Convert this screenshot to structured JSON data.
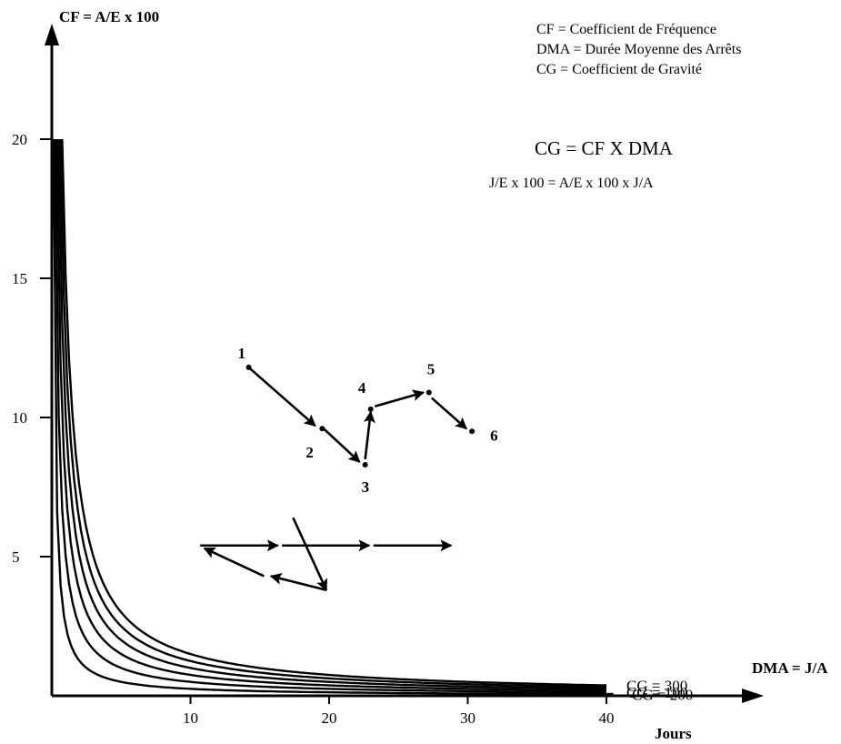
{
  "chart_data": {
    "type": "line",
    "title": "",
    "ylabel": "CF = A/E x 100",
    "xlabel": "DMA = J/A",
    "x_unit": "Jours",
    "xlim": [
      0,
      48
    ],
    "ylim": [
      0,
      24
    ],
    "x_ticks": [
      10,
      20,
      30,
      40
    ],
    "x_tick_labels": [
      "10",
      "20",
      "30",
      "40"
    ],
    "y_ticks": [
      5,
      10,
      15,
      20
    ],
    "y_tick_labels": [
      "5",
      "10",
      "15",
      "20"
    ],
    "legend": [
      "CF = Coefficient de Fréquence",
      "DMA = Durée Moyenne des Arrêts",
      "CG = Coefficient de Gravité"
    ],
    "formula_main": "CG = CF X DMA",
    "formula_sub": "J/E x 100 = A/E x 100 x J/A",
    "curves": [
      {
        "cg": 50,
        "x_end": 40.5
      },
      {
        "cg": 100,
        "x_end": 40.0
      },
      {
        "cg": 150,
        "x_end": 40.0
      },
      {
        "cg": 200,
        "x_end": 40.0
      },
      {
        "cg": 250,
        "x_end": 40.0
      },
      {
        "cg": 300,
        "x_end": 40.0
      }
    ],
    "curve_labels": [
      {
        "text": "CG = 300",
        "cg": 300
      },
      {
        "text": "CG = 200",
        "cg": 200
      },
      {
        "text": "CG = 100",
        "cg": 100
      }
    ],
    "path_points": [
      {
        "label": "1",
        "x": 14.2,
        "y": 11.8
      },
      {
        "label": "2",
        "x": 19.5,
        "y": 9.6
      },
      {
        "label": "3",
        "x": 22.6,
        "y": 8.3
      },
      {
        "label": "4",
        "x": 23.0,
        "y": 10.3
      },
      {
        "label": "5",
        "x": 27.2,
        "y": 10.9
      },
      {
        "label": "6",
        "x": 30.3,
        "y": 9.5
      }
    ],
    "path_arrows": [
      {
        "from": [
          14.2,
          11.8
        ],
        "to": [
          19.0,
          9.7
        ]
      },
      {
        "from": [
          19.6,
          9.6
        ],
        "to": [
          22.2,
          8.4
        ]
      },
      {
        "from": [
          22.6,
          8.5
        ],
        "to": [
          23.0,
          10.2
        ]
      },
      {
        "from": [
          23.3,
          10.4
        ],
        "to": [
          26.8,
          10.9
        ]
      },
      {
        "from": [
          27.4,
          10.7
        ],
        "to": [
          29.9,
          9.6
        ]
      }
    ],
    "lower_arrows": [
      {
        "from": [
          10.7,
          5.4
        ],
        "to": [
          16.3,
          5.4
        ]
      },
      {
        "from": [
          16.6,
          5.4
        ],
        "to": [
          22.9,
          5.4
        ]
      },
      {
        "from": [
          23.2,
          5.4
        ],
        "to": [
          28.8,
          5.4
        ]
      },
      {
        "from": [
          17.4,
          6.4
        ],
        "to": [
          19.8,
          3.8
        ]
      },
      {
        "from": [
          19.8,
          3.8
        ],
        "to": [
          15.8,
          4.3
        ]
      },
      {
        "from": [
          15.3,
          4.3
        ],
        "to": [
          11.0,
          5.3
        ]
      }
    ]
  }
}
